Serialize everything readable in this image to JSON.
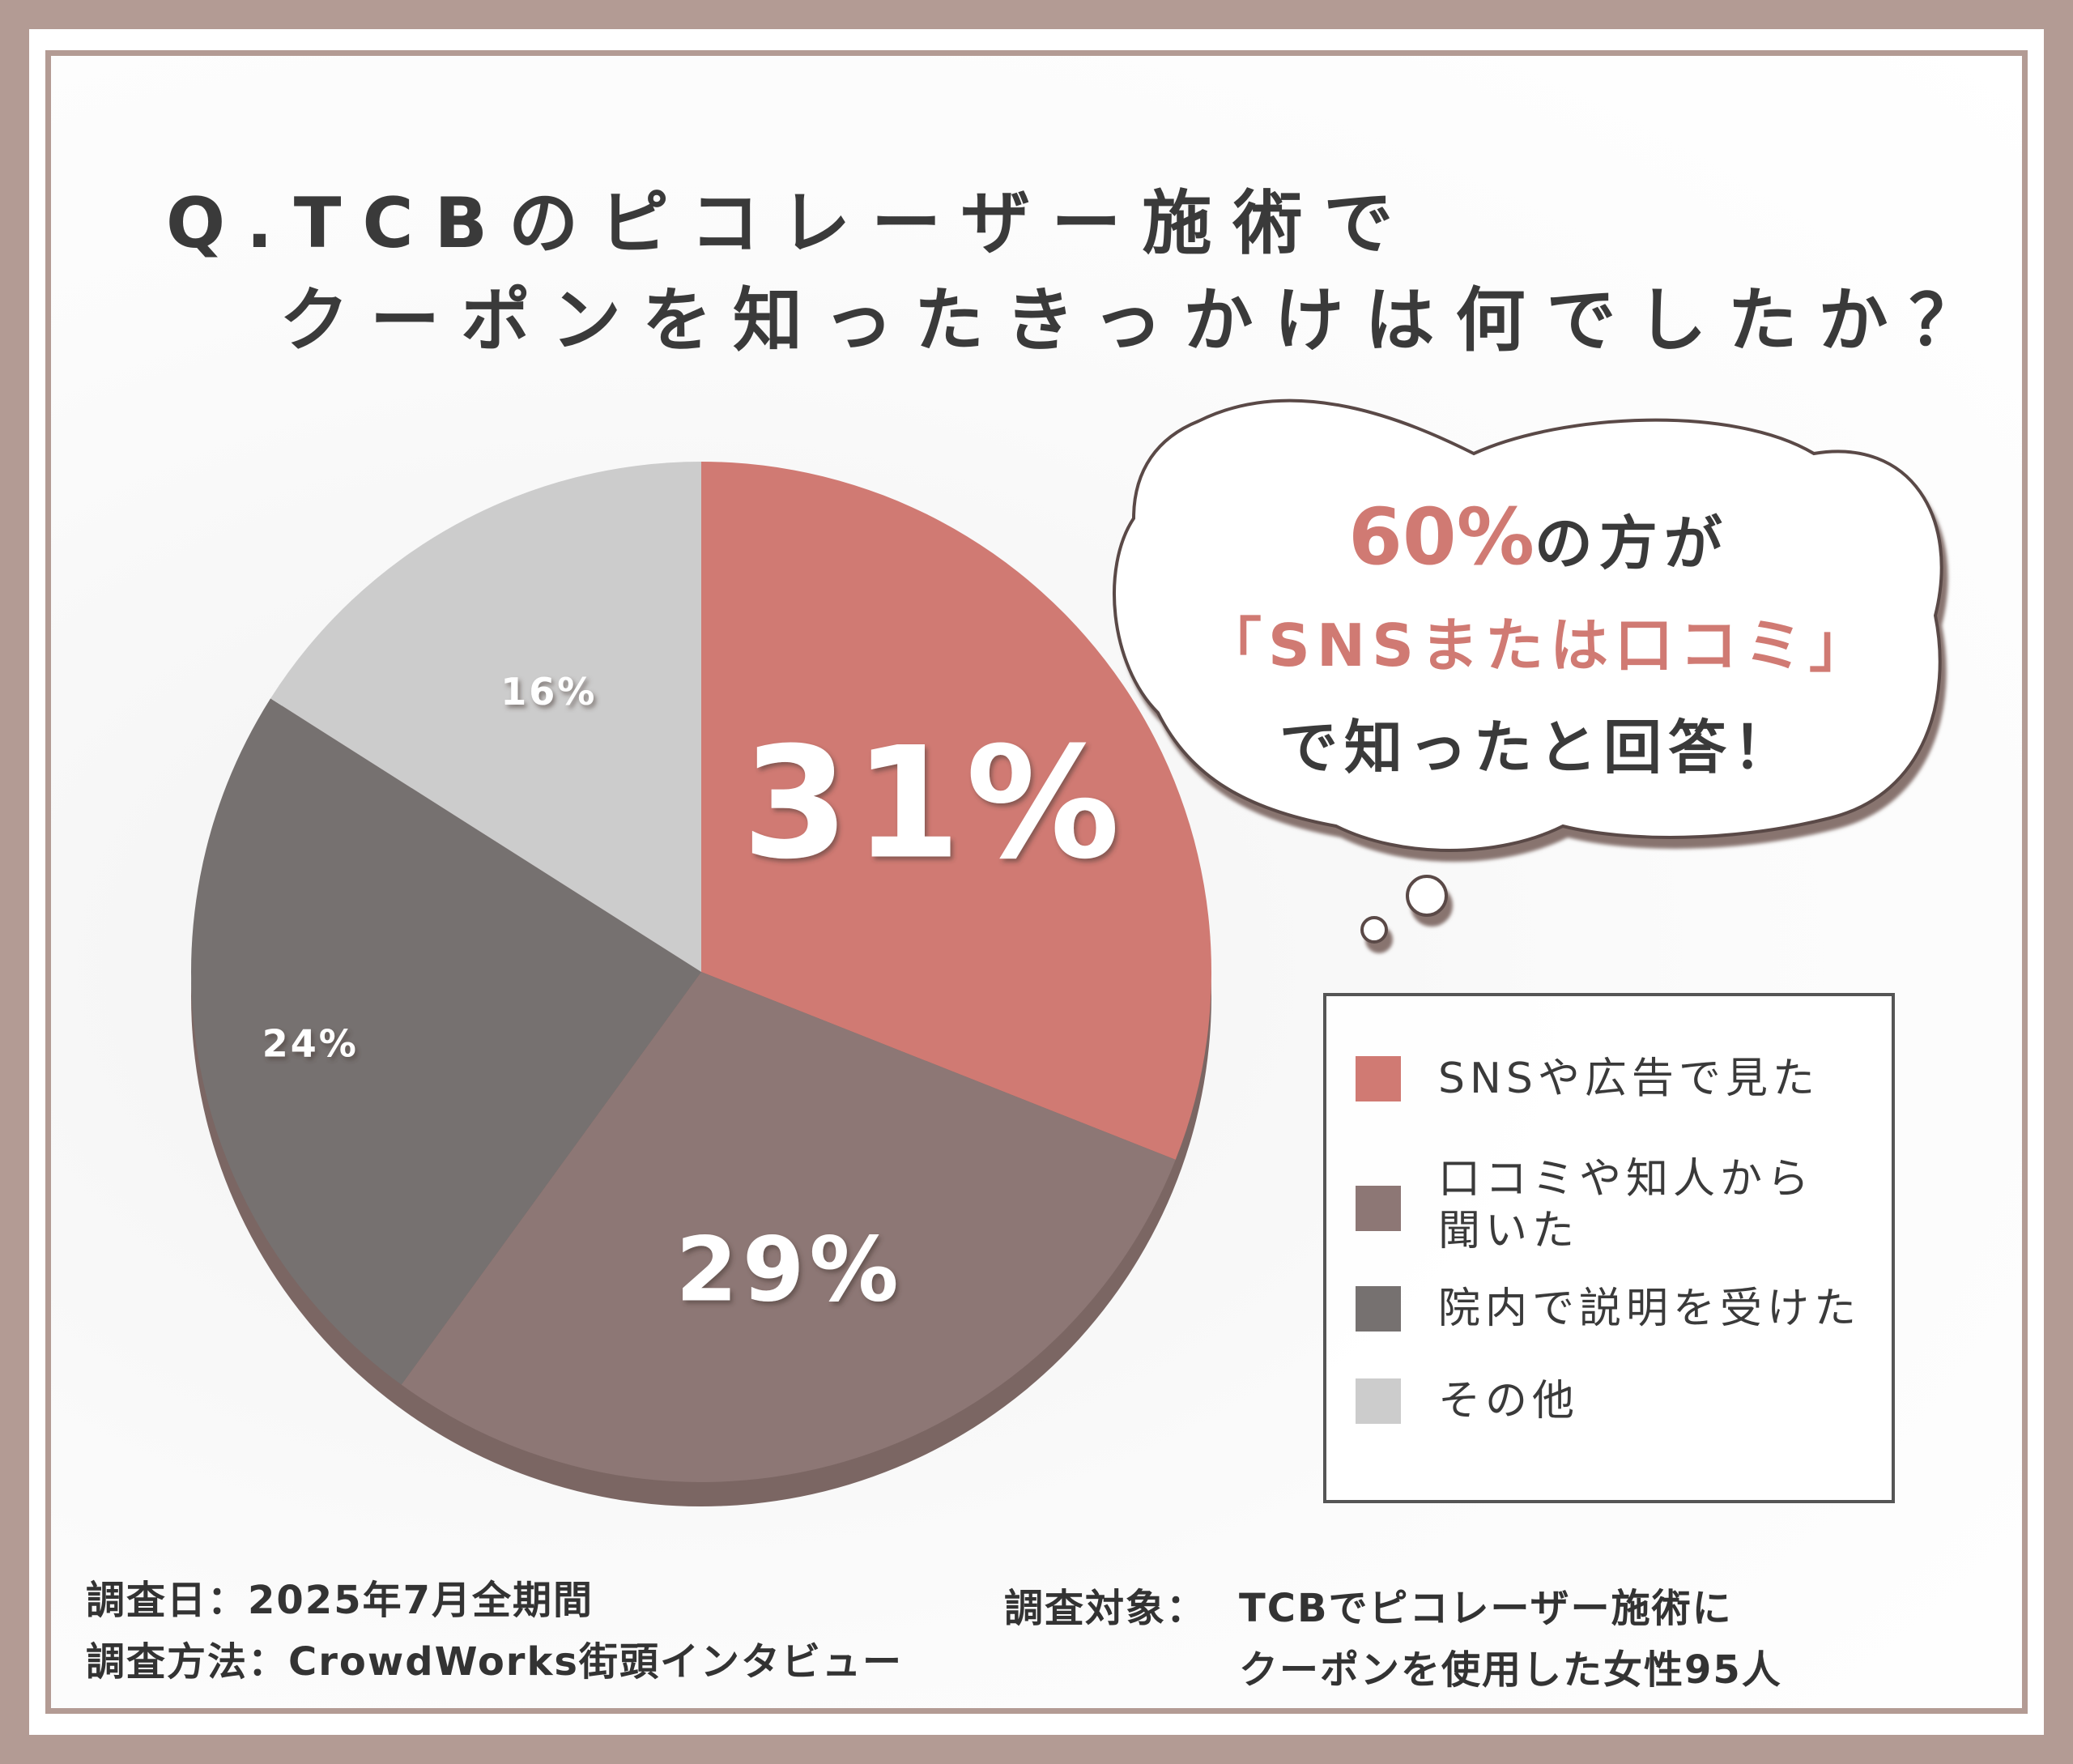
{
  "title": {
    "line1": "Q.TCBのピコレーザー施術で",
    "line2": "クーポンを知ったきっかけは何でしたか？"
  },
  "bubble": {
    "pct": "60%",
    "line1_rest": "の方が",
    "line2": "「SNSまたは口コミ」",
    "line3": "で知ったと回答！"
  },
  "chart_data": {
    "type": "pie",
    "title": "Q.TCBのピコレーザー施術でクーポンを知ったきっかけは何でしたか？",
    "slices": [
      {
        "label": "SNSや広告で見た",
        "value": 31,
        "display": "31%",
        "color": "#d07a73"
      },
      {
        "label": "口コミや知人から聞いた",
        "value": 29,
        "display": "29%",
        "color": "#8d7775"
      },
      {
        "label": "院内で説明を受けた",
        "value": 24,
        "display": "24%",
        "color": "#767170"
      },
      {
        "label": "その他",
        "value": 16,
        "display": "16%",
        "color": "#cccccc"
      }
    ],
    "legend_position": "right"
  },
  "legend": {
    "items": [
      {
        "lines": [
          "SNSや広告で見た"
        ]
      },
      {
        "lines": [
          "口コミや知人から",
          "聞いた"
        ]
      },
      {
        "lines": [
          "院内で説明を受けた"
        ]
      },
      {
        "lines": [
          "その他"
        ]
      }
    ]
  },
  "footer": {
    "date": "調査日：2025年7月全期間",
    "method": "調査方法：CrowdWorks街頭インタビュー",
    "target_label": "調査対象：",
    "target_line1": "TCBでピコレーザー施術に",
    "target_line2": "クーポンを使用した女性95人"
  }
}
